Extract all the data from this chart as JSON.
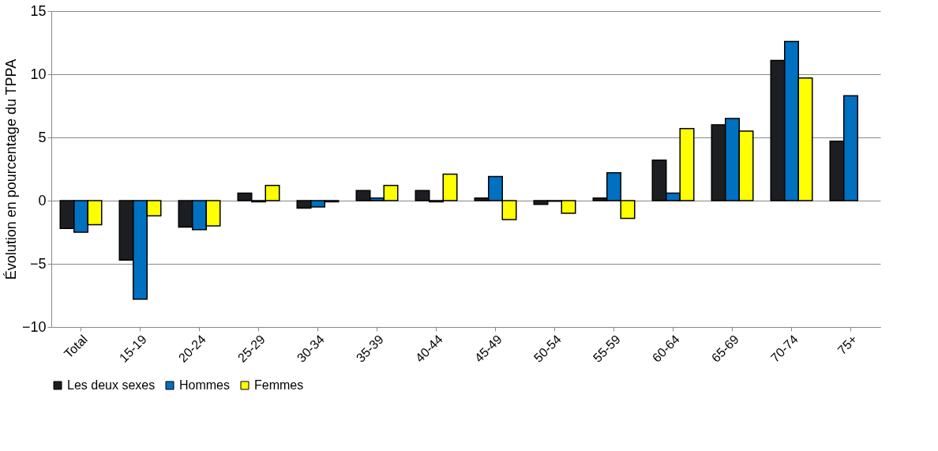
{
  "chart_data": {
    "type": "bar",
    "ylabel": "Évolution en pourcentage du TPPA",
    "categories": [
      "Total",
      "15-19",
      "20-24",
      "25-29",
      "30-34",
      "35-39",
      "40-44",
      "45-49",
      "50-54",
      "55-59",
      "60-64",
      "65-69",
      "70-74",
      "75+"
    ],
    "series": [
      {
        "name": "Les deux sexes",
        "color": "#1c1e21",
        "values": [
          -2.2,
          -4.7,
          -2.1,
          0.6,
          -0.6,
          0.8,
          0.8,
          0.2,
          -0.3,
          0.2,
          3.2,
          6.0,
          11.1,
          4.7
        ]
      },
      {
        "name": "Hommes",
        "color": "#0070c0",
        "values": [
          -2.5,
          -7.8,
          -2.3,
          -0.1,
          -0.5,
          0.2,
          -0.1,
          1.9,
          -0.05,
          2.2,
          0.6,
          6.5,
          12.6,
          8.3
        ]
      },
      {
        "name": "Femmes",
        "color": "#ffff00",
        "values": [
          -1.9,
          -1.2,
          -2.0,
          1.2,
          -0.1,
          1.2,
          2.1,
          -1.5,
          -1.0,
          -1.4,
          5.7,
          5.5,
          9.7,
          null
        ]
      }
    ],
    "ylim": [
      -10,
      15
    ],
    "yticks": [
      -10,
      -5,
      0,
      5,
      10,
      15
    ],
    "grid": "y",
    "legend": "bottom"
  }
}
